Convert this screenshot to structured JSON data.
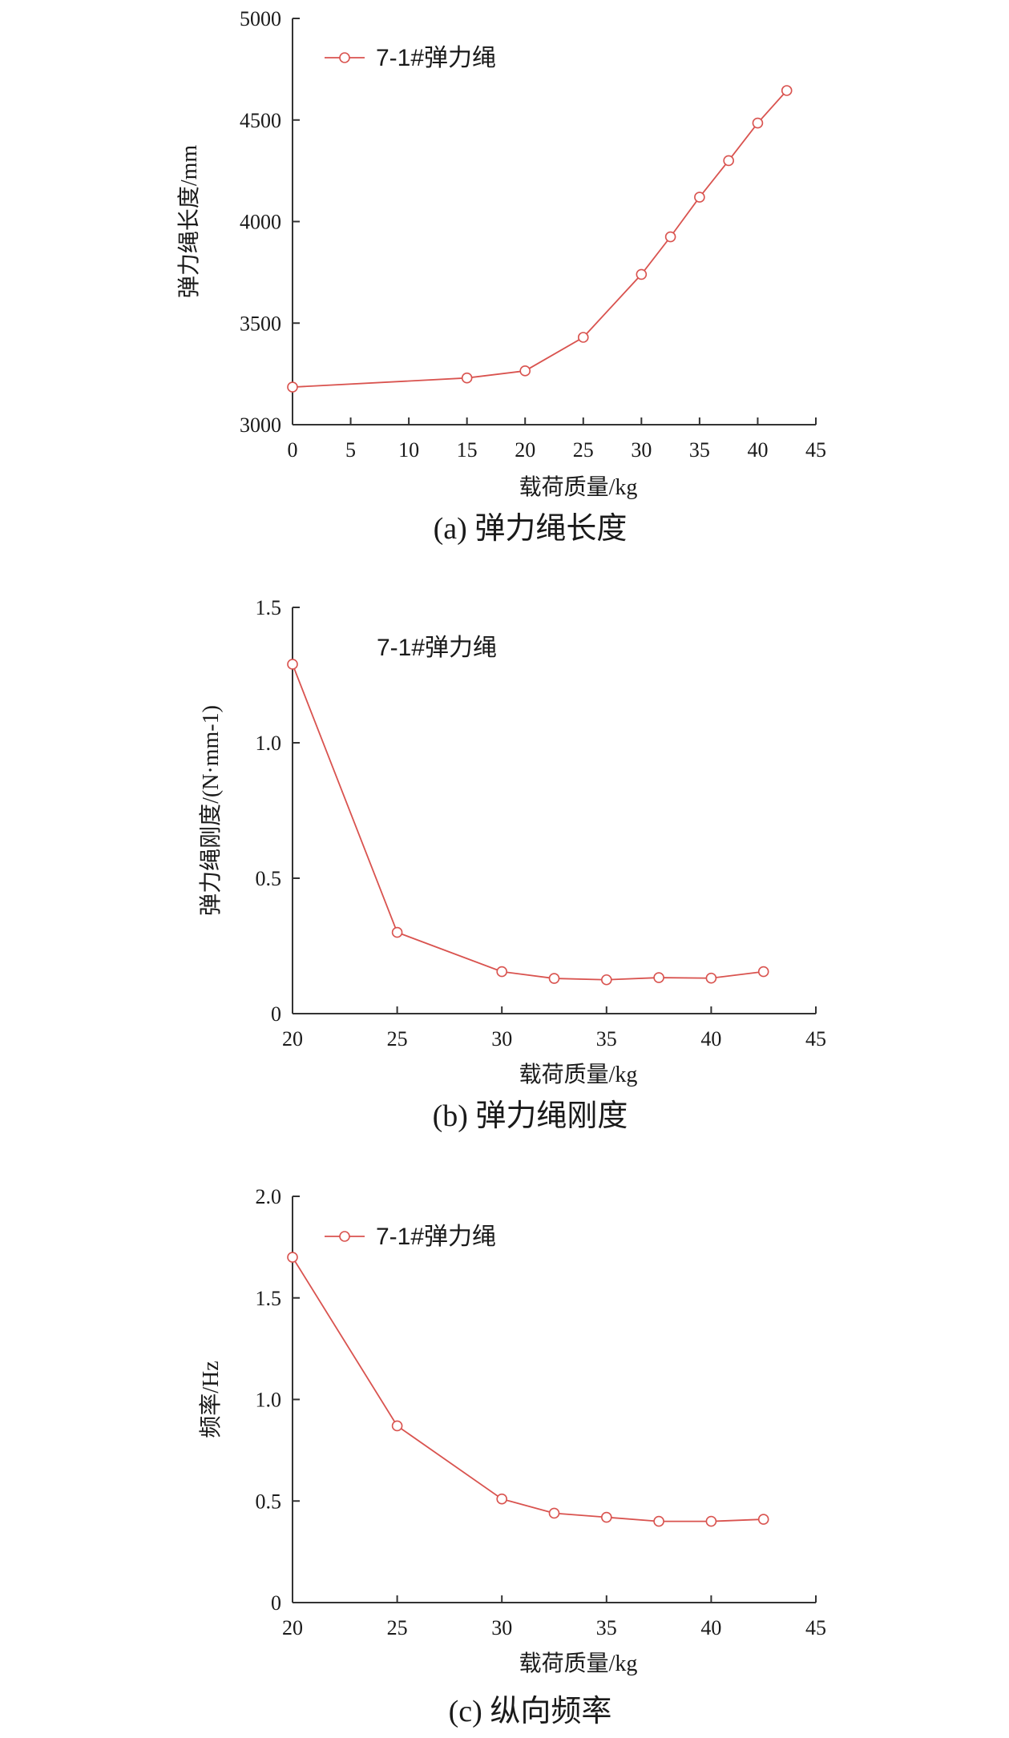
{
  "colors": {
    "series": "#d9534f",
    "axis": "#333333",
    "text": "#1a1a1a"
  },
  "chart_data": [
    {
      "type": "line",
      "caption": "(a)  弹力绳长度",
      "xlabel": "载荷质量/kg",
      "ylabel": "弹力绳长度/mm",
      "xlim": [
        0,
        45
      ],
      "ylim": [
        3000,
        5000
      ],
      "xticks": [
        "0",
        "5",
        "10",
        "15",
        "20",
        "25",
        "30",
        "35",
        "40",
        "45"
      ],
      "yticks": [
        "3000",
        "3500",
        "4000",
        "4500",
        "5000"
      ],
      "legend_placement": "top-left",
      "legend_marker": true,
      "grid": false,
      "series": [
        {
          "name": "7-1#弹力绳",
          "x": [
            0,
            15,
            20,
            25,
            30,
            32.5,
            35,
            37.5,
            40,
            42.5
          ],
          "y": [
            3185,
            3230,
            3265,
            3430,
            3740,
            3925,
            4120,
            4300,
            4485,
            4645
          ]
        }
      ]
    },
    {
      "type": "line",
      "caption": "(b)  弹力绳刚度",
      "xlabel": "载荷质量/kg",
      "ylabel": "弹力绳刚度/(N·mm-1)",
      "xlim": [
        20,
        45
      ],
      "ylim": [
        0,
        1.5
      ],
      "xticks": [
        "20",
        "25",
        "30",
        "35",
        "40",
        "45"
      ],
      "yticks": [
        "0",
        "0.5",
        "1.0",
        "1.5"
      ],
      "legend_placement": "top-center",
      "legend_marker": false,
      "grid": false,
      "series": [
        {
          "name": "7-1#弹力绳",
          "x": [
            20,
            25,
            30,
            32.5,
            35,
            37.5,
            40,
            42.5
          ],
          "y": [
            1.29,
            0.3,
            0.155,
            0.13,
            0.125,
            0.133,
            0.131,
            0.155
          ]
        }
      ]
    },
    {
      "type": "line",
      "caption": "(c)  纵向频率",
      "xlabel": "载荷质量/kg",
      "ylabel": "频率/Hz",
      "xlim": [
        20,
        45
      ],
      "ylim": [
        0,
        2.0
      ],
      "xticks": [
        "20",
        "25",
        "30",
        "35",
        "40",
        "45"
      ],
      "yticks": [
        "0",
        "0.5",
        "1.0",
        "1.5",
        "2.0"
      ],
      "legend_placement": "top-left",
      "legend_marker": true,
      "grid": false,
      "series": [
        {
          "name": "7-1#弹力绳",
          "x": [
            20,
            25,
            30,
            32.5,
            35,
            37.5,
            40,
            42.5
          ],
          "y": [
            1.7,
            0.87,
            0.51,
            0.44,
            0.42,
            0.4,
            0.4,
            0.41
          ]
        }
      ]
    }
  ]
}
